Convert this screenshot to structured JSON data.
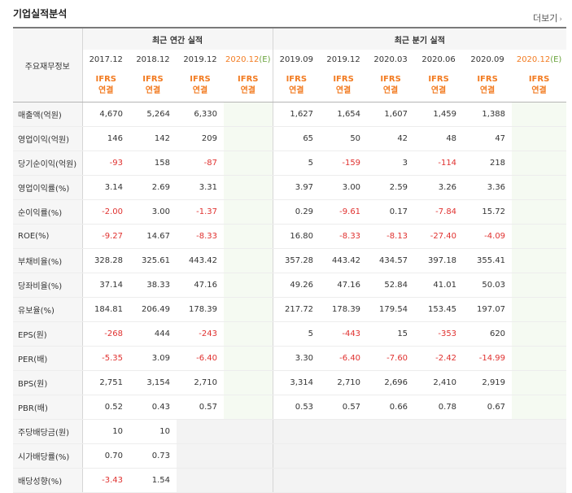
{
  "title": "기업실적분석",
  "more_label": "더보기",
  "header": {
    "corner_label": "주요재무정보",
    "annual_title": "최근 연간 실적",
    "quarterly_title": "최근 분기 실적",
    "annual_periods": [
      "2017.12",
      "2018.12",
      "2019.12",
      "2020.12"
    ],
    "annual_estimate_marker": "(E)",
    "quarterly_periods": [
      "2019.09",
      "2019.12",
      "2020.03",
      "2020.06",
      "2020.09",
      "2020.12"
    ],
    "quarterly_estimate_marker": "(E)",
    "basis_line1": "IFRS",
    "basis_line2": "연결"
  },
  "colors": {
    "negative": "#e0312f",
    "basis": "#f27b21",
    "estimate_marker": "#6aa33c"
  },
  "rows": [
    {
      "label": "매출액(억원)",
      "annual": [
        "4,670",
        "5,264",
        "6,330",
        ""
      ],
      "quarterly": [
        "1,627",
        "1,654",
        "1,607",
        "1,459",
        "1,388",
        ""
      ]
    },
    {
      "label": "영업이익(억원)",
      "annual": [
        "146",
        "142",
        "209",
        ""
      ],
      "quarterly": [
        "65",
        "50",
        "42",
        "48",
        "47",
        ""
      ]
    },
    {
      "label": "당기순이익(억원)",
      "annual": [
        "-93",
        "158",
        "-87",
        ""
      ],
      "quarterly": [
        "5",
        "-159",
        "3",
        "-114",
        "218",
        ""
      ]
    },
    {
      "label": "영업이익률(%)",
      "annual": [
        "3.14",
        "2.69",
        "3.31",
        ""
      ],
      "quarterly": [
        "3.97",
        "3.00",
        "2.59",
        "3.26",
        "3.36",
        ""
      ]
    },
    {
      "label": "순이익률(%)",
      "annual": [
        "-2.00",
        "3.00",
        "-1.37",
        ""
      ],
      "quarterly": [
        "0.29",
        "-9.61",
        "0.17",
        "-7.84",
        "15.72",
        ""
      ]
    },
    {
      "label": "ROE(%)",
      "annual": [
        "-9.27",
        "14.67",
        "-8.33",
        ""
      ],
      "quarterly": [
        "16.80",
        "-8.33",
        "-8.13",
        "-27.40",
        "-4.09",
        ""
      ]
    },
    {
      "label": "부채비율(%)",
      "annual": [
        "328.28",
        "325.61",
        "443.42",
        ""
      ],
      "quarterly": [
        "357.28",
        "443.42",
        "434.57",
        "397.18",
        "355.41",
        ""
      ]
    },
    {
      "label": "당좌비율(%)",
      "annual": [
        "37.14",
        "38.33",
        "47.16",
        ""
      ],
      "quarterly": [
        "49.26",
        "47.16",
        "52.84",
        "41.01",
        "50.03",
        ""
      ]
    },
    {
      "label": "유보율(%)",
      "annual": [
        "184.81",
        "206.49",
        "178.39",
        ""
      ],
      "quarterly": [
        "217.72",
        "178.39",
        "179.54",
        "153.45",
        "197.07",
        ""
      ]
    },
    {
      "label": "EPS(원)",
      "annual": [
        "-268",
        "444",
        "-243",
        ""
      ],
      "quarterly": [
        "5",
        "-443",
        "15",
        "-353",
        "620",
        ""
      ]
    },
    {
      "label": "PER(배)",
      "annual": [
        "-5.35",
        "3.09",
        "-6.40",
        ""
      ],
      "quarterly": [
        "3.30",
        "-6.40",
        "-7.60",
        "-2.42",
        "-14.99",
        ""
      ]
    },
    {
      "label": "BPS(원)",
      "annual": [
        "2,751",
        "3,154",
        "2,710",
        ""
      ],
      "quarterly": [
        "3,314",
        "2,710",
        "2,696",
        "2,410",
        "2,919",
        ""
      ]
    },
    {
      "label": "PBR(배)",
      "annual": [
        "0.52",
        "0.43",
        "0.57",
        ""
      ],
      "quarterly": [
        "0.53",
        "0.57",
        "0.66",
        "0.78",
        "0.67",
        ""
      ]
    },
    {
      "label": "주당배당금(원)",
      "annual": [
        "10",
        "10",
        "",
        ""
      ],
      "quarterly": [
        "",
        "",
        "",
        "",
        "",
        ""
      ],
      "empty_from": 2
    },
    {
      "label": "시가배당률(%)",
      "annual": [
        "0.70",
        "0.73",
        "",
        ""
      ],
      "quarterly": [
        "",
        "",
        "",
        "",
        "",
        ""
      ],
      "empty_from": 2
    },
    {
      "label": "배당성향(%)",
      "annual": [
        "-3.43",
        "1.54",
        "",
        ""
      ],
      "quarterly": [
        "",
        "",
        "",
        "",
        "",
        ""
      ],
      "empty_from": 2
    }
  ]
}
